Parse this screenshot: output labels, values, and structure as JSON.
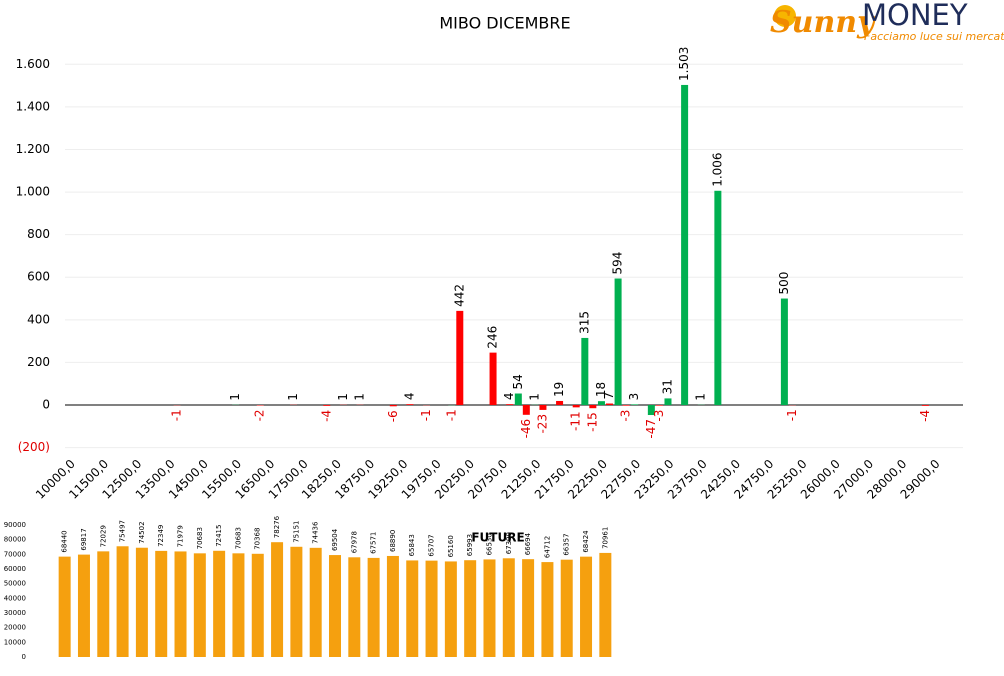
{
  "chart_data": [
    {
      "type": "bar",
      "title": "MIBO DICEMBRE",
      "categories": [
        "10000,0",
        null,
        "11500,0",
        null,
        "12500,0",
        null,
        "13500,0",
        null,
        "14500,0",
        null,
        "15500,0",
        null,
        "16500,0",
        null,
        "17500,0",
        null,
        "18250,0",
        null,
        "18750,0",
        null,
        "19250,0",
        null,
        "19750,0",
        null,
        "20250,0",
        null,
        "20750,0",
        null,
        "21250,0",
        null,
        "21750,0",
        null,
        "22250,0",
        null,
        "22750,0",
        null,
        "23250,0",
        null,
        "23750,0",
        null,
        "24250,0",
        null,
        "24750,0",
        null,
        "25250,0",
        null,
        "26000,0",
        null,
        "27000,0",
        null,
        "28000,0",
        null,
        "29000,0",
        null
      ],
      "series": [
        {
          "color": "#00b050",
          "values": [
            null,
            null,
            null,
            null,
            null,
            null,
            null,
            null,
            null,
            null,
            1,
            null,
            null,
            null,
            null,
            null,
            null,
            null,
            null,
            null,
            null,
            null,
            null,
            -1,
            null,
            null,
            null,
            54,
            1,
            null,
            null,
            315,
            18,
            594,
            3,
            -47,
            31,
            1503,
            1,
            1006,
            null,
            null,
            null,
            500,
            null,
            null,
            null,
            null,
            null,
            null,
            null,
            null,
            null,
            null
          ],
          "value_labels": [
            null,
            null,
            null,
            null,
            null,
            null,
            null,
            null,
            null,
            null,
            "1",
            null,
            null,
            null,
            null,
            null,
            null,
            null,
            null,
            null,
            null,
            null,
            null,
            "-1",
            null,
            null,
            null,
            "54",
            "1",
            null,
            null,
            "315",
            "18",
            "594",
            "3",
            "-47",
            "31",
            "1.503",
            "1",
            "1.006",
            null,
            null,
            null,
            "500",
            null,
            null,
            null,
            null,
            null,
            null,
            null,
            null,
            null,
            null
          ]
        },
        {
          "color": "#ff0000",
          "values": [
            null,
            null,
            null,
            null,
            null,
            null,
            -1,
            null,
            null,
            null,
            null,
            -2,
            null,
            1,
            null,
            -4,
            1,
            1,
            null,
            -6,
            4,
            -1,
            null,
            442,
            null,
            246,
            4,
            -46,
            -23,
            19,
            -11,
            -15,
            7,
            -3,
            null,
            -3,
            null,
            null,
            null,
            null,
            null,
            null,
            null,
            -1,
            null,
            null,
            null,
            null,
            null,
            null,
            null,
            -4,
            null,
            null
          ]
        }
      ],
      "ylim": [
        -200,
        1700
      ],
      "yticks": [
        {
          "value": -200,
          "label": "(200)"
        },
        0,
        200,
        400,
        600,
        800,
        {
          "value": 1000,
          "label": "1.000"
        },
        {
          "value": 1200,
          "label": "1.200"
        },
        {
          "value": 1400,
          "label": "1.400"
        },
        {
          "value": 1600,
          "label": "1.600"
        }
      ],
      "grid": true
    },
    {
      "type": "bar",
      "title": "FUTURE",
      "values": [
        68440,
        69817,
        72029,
        75497,
        74502,
        72349,
        71979,
        70683,
        72415,
        70683,
        70368,
        78276,
        75151,
        74436,
        69504,
        67978,
        67571,
        68890,
        65843,
        65707,
        65160,
        65993,
        66530,
        67300,
        66694,
        64712,
        66357,
        68424,
        70961
      ],
      "color": "#f5a00f",
      "ylim": [
        0,
        90000
      ],
      "yticks": [
        0,
        10000,
        20000,
        30000,
        40000,
        50000,
        60000,
        70000,
        80000,
        90000
      ],
      "grid": false
    }
  ],
  "logo": {
    "brand": "Sunny",
    "name": "MONEY",
    "tagline": "Facciamo luce sui mercati"
  }
}
